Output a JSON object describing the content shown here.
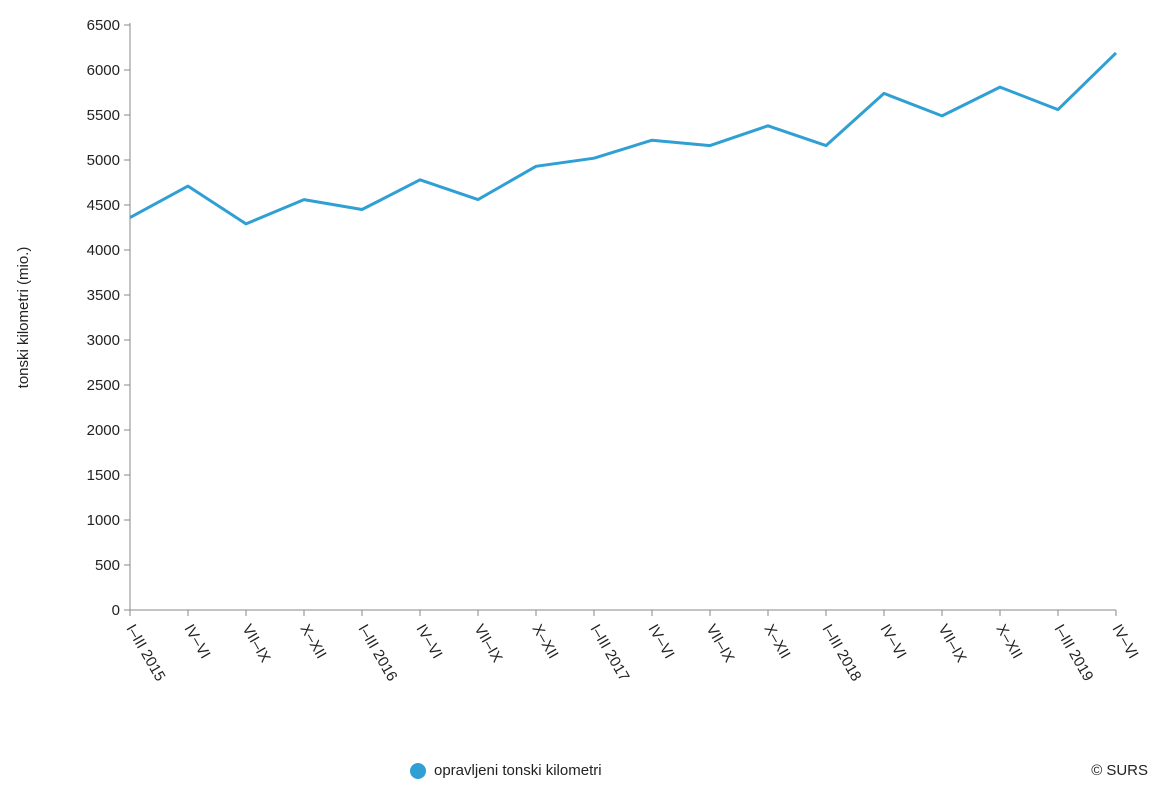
{
  "chart_data": {
    "type": "line",
    "categories": [
      "I–III 2015",
      "IV–VI",
      "VII–IX",
      "X–XII",
      "I–III 2016",
      "IV–VI",
      "VII–IX",
      "X–XII",
      "I–III 2017",
      "IV–VI",
      "VII–IX",
      "X–XII",
      "I–III 2018",
      "IV–VI",
      "VII–IX",
      "X–XII",
      "I–III 2019",
      "IV–VI"
    ],
    "series": [
      {
        "name": "opravljeni tonski kilometri",
        "values": [
          4360,
          4710,
          4290,
          4560,
          4450,
          4780,
          4560,
          4930,
          5020,
          5220,
          5160,
          5380,
          5160,
          5740,
          5490,
          5810,
          5560,
          6190
        ]
      }
    ],
    "ylabel": "tonski kilometri (mio.)",
    "xlabel": "",
    "ylim": [
      0,
      6500
    ],
    "yticks": [
      0,
      500,
      1000,
      1500,
      2000,
      2500,
      3000,
      3500,
      4000,
      4500,
      5000,
      5500,
      6000,
      6500
    ],
    "grid": false,
    "legend_position": "bottom",
    "color": "#2f9fd4"
  },
  "credit": {
    "symbol": "©",
    "text": "SURS"
  }
}
